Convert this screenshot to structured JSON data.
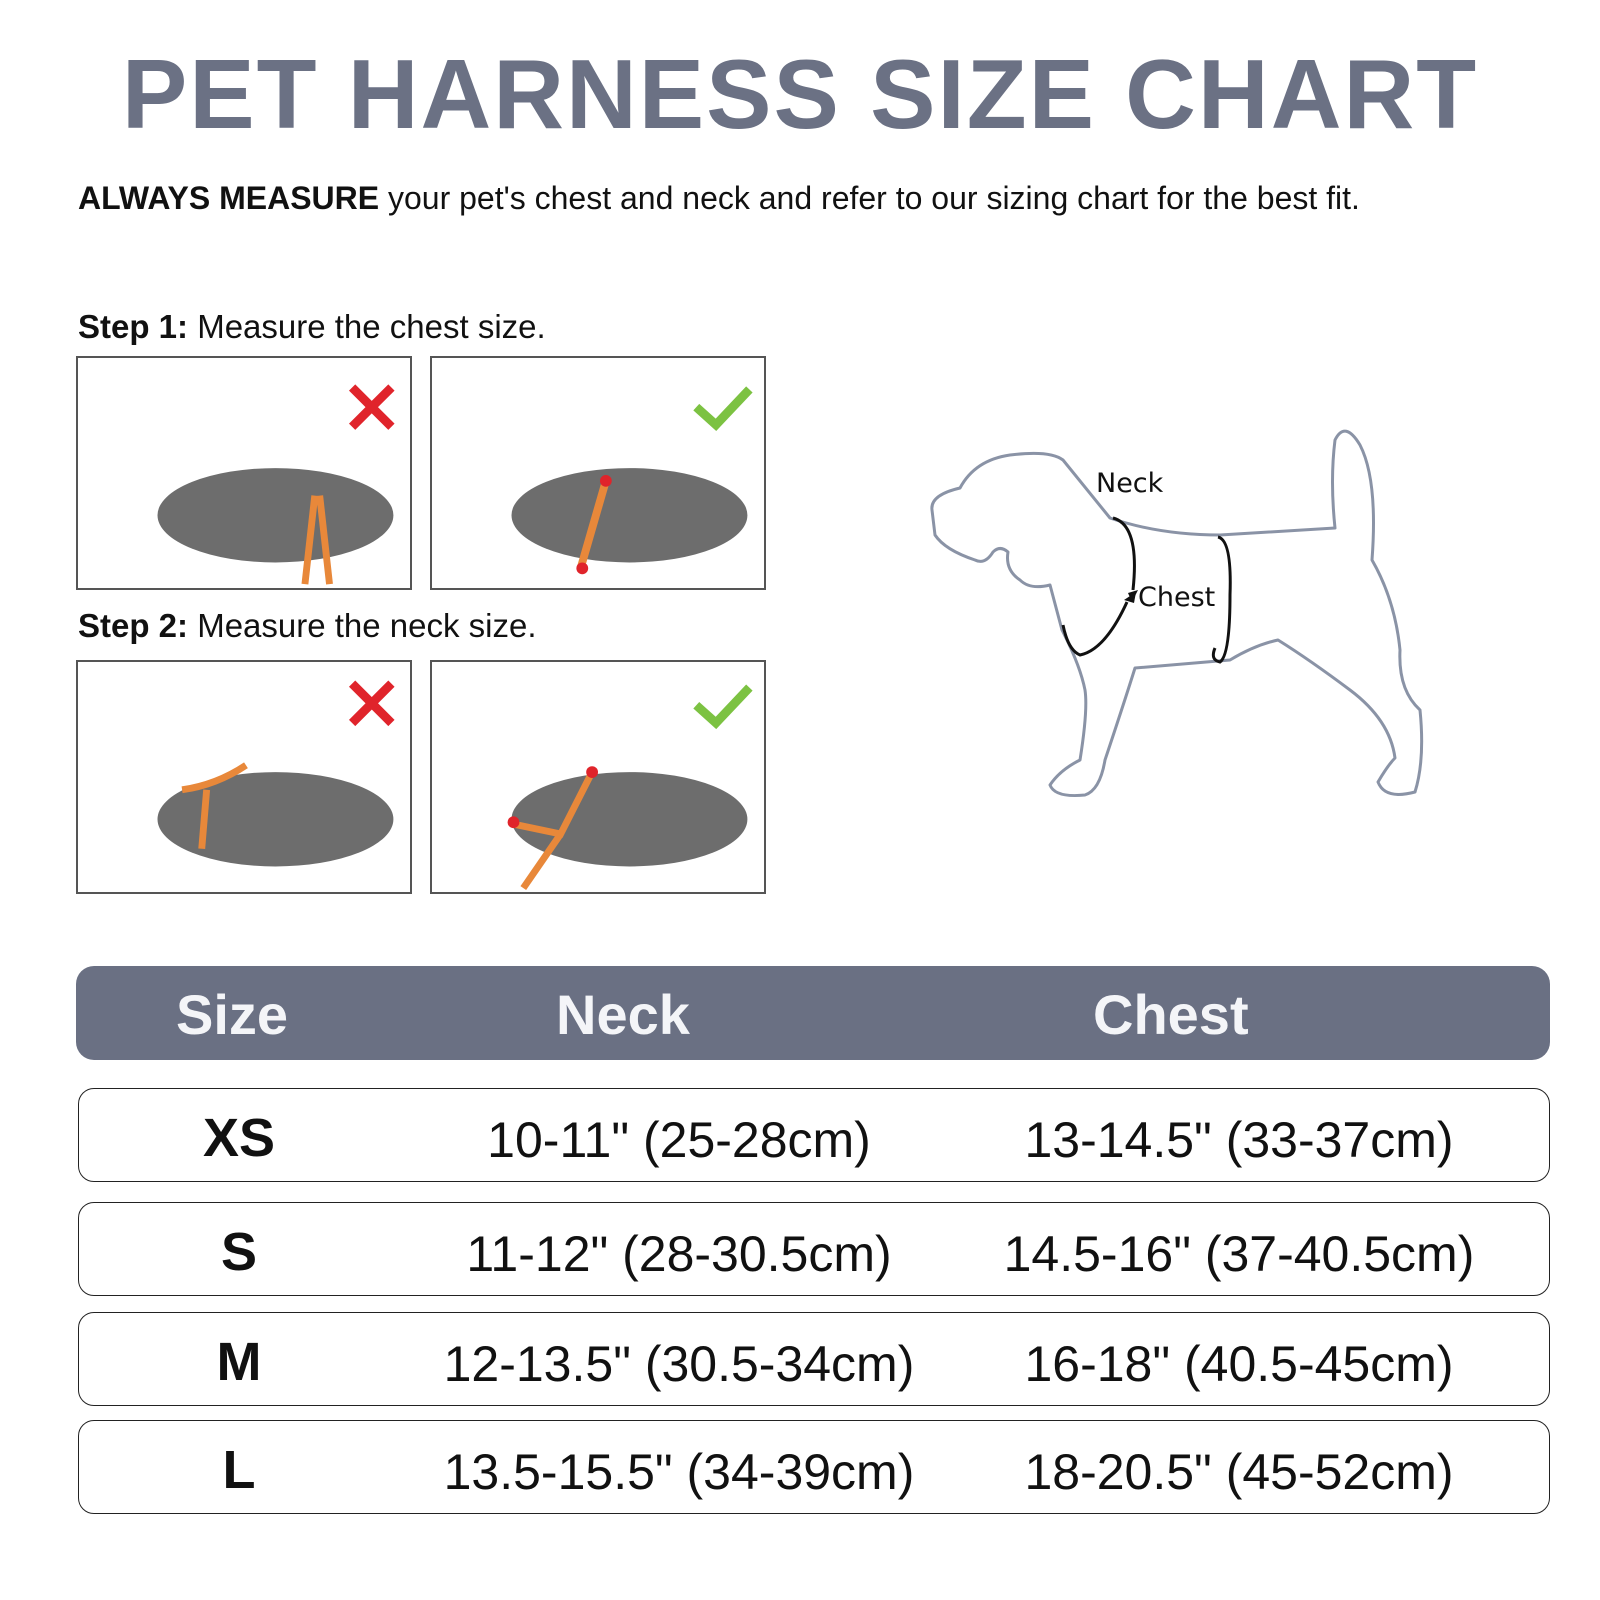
{
  "title": "PET HARNESS SIZE CHART",
  "intro": {
    "bold": "ALWAYS MEASURE",
    "rest": " your pet's chest and neck and refer to our sizing chart for the best fit."
  },
  "steps": [
    {
      "label": "Step 1:",
      "text": " Measure the chest size.",
      "wrong_icon": "red-x-icon",
      "right_icon": "green-check-icon"
    },
    {
      "label": "Step 2:",
      "text": " Measure the neck size.",
      "wrong_icon": "red-x-icon",
      "right_icon": "green-check-icon"
    }
  ],
  "diagram": {
    "neck_label": "Neck",
    "chest_label": "Chest"
  },
  "table": {
    "headers": [
      "Size",
      "Neck",
      "Chest"
    ],
    "rows": [
      {
        "size": "XS",
        "neck": "10-11\" (25-28cm)",
        "chest": "13-14.5\" (33-37cm)"
      },
      {
        "size": "S",
        "neck": "11-12\" (28-30.5cm)",
        "chest": "14.5-16\" (37-40.5cm)"
      },
      {
        "size": "M",
        "neck": "12-13.5\" (30.5-34cm)",
        "chest": "16-18\" (40.5-45cm)"
      },
      {
        "size": "L",
        "neck": "13.5-15.5\" (34-39cm)",
        "chest": "18-20.5\" (45-52cm)"
      }
    ]
  },
  "colors": {
    "title": "#6b7184",
    "header_bg": "#6a7083",
    "wrong": "#e0242b",
    "right": "#7cc242",
    "strap": "#e8883a",
    "outline": "#8a93a6"
  }
}
